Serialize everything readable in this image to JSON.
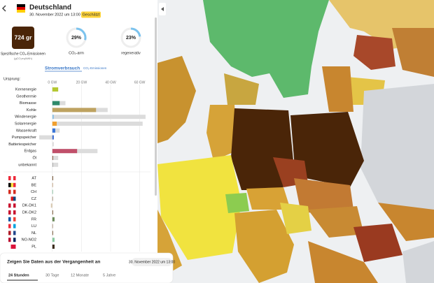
{
  "header": {
    "zone": "Deutschland",
    "datetime": "30. November 2022 um 13:00",
    "badge": "Geschätzt"
  },
  "summary": {
    "intensity": "724 gr",
    "intensity_label": "Spezifische CO₂-Emissionen",
    "intensity_unit": "(gCO₂eq/kWh)",
    "low_carbon": {
      "value": 29,
      "label": "29%"
    },
    "low_carbon_label": "CO₂-arm",
    "renewable": {
      "value": 23,
      "label": "23%"
    },
    "renewable_label": "regenerativ"
  },
  "tabs": {
    "active": "Stromverbrauch",
    "other": "CO₂-Emissionen"
  },
  "origin_label": "Ursprung:",
  "chart_data": [
    {
      "type": "bar",
      "orientation": "horizontal",
      "categories": [
        "Kernenergie",
        "Geothermie",
        "Biomasse",
        "Kohle",
        "Windenergie",
        "Solarenergie",
        "Wasserkraft",
        "Pumpspeicher",
        "Batteriespeicher",
        "Erdgas",
        "Öl",
        "unbekannt"
      ],
      "series": [
        {
          "name": "Kapazität",
          "color": "#dcdcdc",
          "values": [
            4,
            0,
            9,
            38,
            64,
            62,
            5,
            -9,
            1,
            31,
            4,
            4
          ]
        },
        {
          "name": "Produktion",
          "colors": [
            "#b5c832",
            "#b04a2c",
            "#2f8a6b",
            "#bea260",
            "#8ec0e4",
            "#f0a030",
            "#3875d8",
            "#3b6bd0",
            "#6f6fd0",
            "#c0506a",
            "#86573f",
            "#aaaaaa"
          ],
          "values": [
            4,
            0,
            5,
            30,
            1,
            3,
            2,
            1,
            0,
            17,
            0.5,
            0.5
          ]
        }
      ],
      "xlim": [
        -10,
        65
      ],
      "xticks": [
        {
          "value": 0,
          "label": "0 GW"
        },
        {
          "value": 20,
          "label": "20 GW"
        },
        {
          "value": 40,
          "label": "40 GW"
        },
        {
          "value": 60,
          "label": "60 GW"
        }
      ],
      "grid": true
    },
    {
      "type": "bar",
      "orientation": "horizontal",
      "categories": [
        "AT",
        "BE",
        "CH",
        "CZ",
        "DK-DK1",
        "DK-DK2",
        "FR",
        "LU",
        "NL",
        "NO-NO2",
        "PL"
      ],
      "flags": [
        [
          "#ed2939",
          "#ffffff",
          "#ed2939"
        ],
        [
          "#000000",
          "#fae042",
          "#ed2939"
        ],
        [
          "#d52b1e",
          "#ffffff",
          "#d52b1e"
        ],
        [
          "#ffffff",
          "#d7141a",
          "#11457e"
        ],
        [
          "#c8102e",
          "#ffffff",
          "#c8102e"
        ],
        [
          "#c8102e",
          "#ffffff",
          "#c8102e"
        ],
        [
          "#0055a4",
          "#ffffff",
          "#ef4135"
        ],
        [
          "#ed2939",
          "#ffffff",
          "#00a1de"
        ],
        [
          "#ae1c28",
          "#ffffff",
          "#21468b"
        ],
        [
          "#ba0c2f",
          "#ffffff",
          "#00205b"
        ],
        [
          "#ffffff",
          "#dc143c",
          "#dc143c"
        ]
      ],
      "series": [
        {
          "name": "Import",
          "colors": [
            "#6b4a2a",
            "#9a6a3a",
            "#4a9a6a",
            "#6b4a2a",
            "#d8c8b0",
            "#7a5a3a",
            "#6a8a5a",
            "#7a5a3a",
            "#7a5a3a",
            "#8ac8a0",
            "#3a2a1a"
          ],
          "values": [
            0.5,
            0.3,
            0.3,
            0.3,
            -1,
            0.5,
            1.5,
            0.3,
            0.5,
            1.5,
            1.5
          ]
        }
      ],
      "xlim": [
        -10,
        65
      ]
    }
  ],
  "history": {
    "title": "Zeigen Sie Daten aus der Vergangenheit an",
    "datetime": "30. November 2022 um 13:00",
    "ranges": [
      "24 Stunden",
      "30 Tage",
      "12 Monate",
      "5 Jahre"
    ]
  }
}
